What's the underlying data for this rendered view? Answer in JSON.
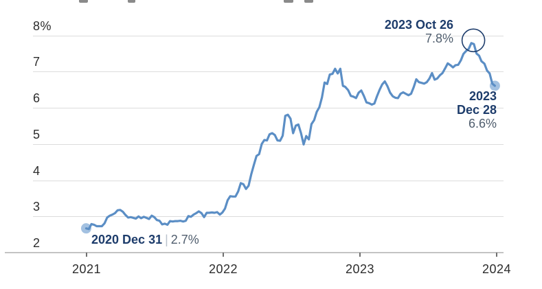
{
  "colors": {
    "line": "#5b8ec5",
    "endpoint_dot": "#a3c1e1",
    "accent_navy": "#1d3c6b",
    "value_gray": "#4f5d6d",
    "grid": "#dcdcdc",
    "axis": "#c3c3c3",
    "tick": "#6f6f6f",
    "axis_label": "#2d2d2d"
  },
  "decor": {
    "clipped_title_fragments": [
      {
        "x": 115,
        "w": 13
      },
      {
        "x": 186,
        "w": 11
      },
      {
        "x": 413,
        "w": 14
      },
      {
        "x": 443,
        "w": 13
      }
    ]
  },
  "chart_data": {
    "type": "line",
    "title": "",
    "xlabel": "",
    "ylabel": "",
    "ylim": [
      2,
      8
    ],
    "grid": "horizontal",
    "legend": "none",
    "yticks": [
      {
        "v": 8,
        "label": "8%"
      },
      {
        "v": 7,
        "label": "7"
      },
      {
        "v": 6,
        "label": "6"
      },
      {
        "v": 5,
        "label": "5"
      },
      {
        "v": 4,
        "label": "4"
      },
      {
        "v": 3,
        "label": "3"
      },
      {
        "v": 2,
        "label": "2"
      }
    ],
    "xticks": [
      {
        "year": 2021,
        "label": "2021"
      },
      {
        "year": 2022,
        "label": "2022"
      },
      {
        "year": 2023,
        "label": "2023"
      },
      {
        "year": 2024,
        "label": "2024"
      }
    ],
    "annotations": {
      "start": {
        "label": "2020 Dec 31",
        "separator": "|",
        "value": "2.7%"
      },
      "peak": {
        "label": "2023 Oct 26",
        "value": "7.8%",
        "circled": true
      },
      "end": {
        "label_line1": "2023",
        "label_line2": "Dec 28",
        "value": "6.6%"
      }
    },
    "series": [
      {
        "points": [
          [
            "2020-12-31",
            2.67
          ],
          [
            "2021-01-07",
            2.65
          ],
          [
            "2021-01-14",
            2.79
          ],
          [
            "2021-01-21",
            2.77
          ],
          [
            "2021-01-28",
            2.73
          ],
          [
            "2021-02-04",
            2.73
          ],
          [
            "2021-02-11",
            2.73
          ],
          [
            "2021-02-18",
            2.81
          ],
          [
            "2021-02-25",
            2.97
          ],
          [
            "2021-03-04",
            3.02
          ],
          [
            "2021-03-11",
            3.05
          ],
          [
            "2021-03-18",
            3.09
          ],
          [
            "2021-03-25",
            3.17
          ],
          [
            "2021-04-01",
            3.18
          ],
          [
            "2021-04-08",
            3.13
          ],
          [
            "2021-04-15",
            3.04
          ],
          [
            "2021-04-22",
            2.97
          ],
          [
            "2021-04-29",
            2.98
          ],
          [
            "2021-05-06",
            2.96
          ],
          [
            "2021-05-13",
            2.94
          ],
          [
            "2021-05-20",
            3.0
          ],
          [
            "2021-05-27",
            2.95
          ],
          [
            "2021-06-03",
            2.99
          ],
          [
            "2021-06-10",
            2.96
          ],
          [
            "2021-06-17",
            2.93
          ],
          [
            "2021-06-24",
            3.02
          ],
          [
            "2021-07-01",
            2.98
          ],
          [
            "2021-07-08",
            2.9
          ],
          [
            "2021-07-15",
            2.88
          ],
          [
            "2021-07-22",
            2.78
          ],
          [
            "2021-07-29",
            2.8
          ],
          [
            "2021-08-05",
            2.77
          ],
          [
            "2021-08-12",
            2.87
          ],
          [
            "2021-08-19",
            2.86
          ],
          [
            "2021-08-26",
            2.87
          ],
          [
            "2021-09-02",
            2.87
          ],
          [
            "2021-09-09",
            2.88
          ],
          [
            "2021-09-16",
            2.86
          ],
          [
            "2021-09-23",
            2.88
          ],
          [
            "2021-09-30",
            3.01
          ],
          [
            "2021-10-07",
            2.99
          ],
          [
            "2021-10-14",
            3.05
          ],
          [
            "2021-10-21",
            3.09
          ],
          [
            "2021-10-28",
            3.14
          ],
          [
            "2021-11-04",
            3.09
          ],
          [
            "2021-11-11",
            2.98
          ],
          [
            "2021-11-18",
            3.1
          ],
          [
            "2021-11-24",
            3.1
          ],
          [
            "2021-12-02",
            3.11
          ],
          [
            "2021-12-09",
            3.1
          ],
          [
            "2021-12-16",
            3.12
          ],
          [
            "2021-12-23",
            3.05
          ],
          [
            "2021-12-30",
            3.11
          ],
          [
            "2022-01-06",
            3.22
          ],
          [
            "2022-01-13",
            3.45
          ],
          [
            "2022-01-20",
            3.56
          ],
          [
            "2022-01-27",
            3.55
          ],
          [
            "2022-02-03",
            3.55
          ],
          [
            "2022-02-10",
            3.69
          ],
          [
            "2022-02-17",
            3.92
          ],
          [
            "2022-02-24",
            3.89
          ],
          [
            "2022-03-03",
            3.76
          ],
          [
            "2022-03-10",
            3.85
          ],
          [
            "2022-03-17",
            4.16
          ],
          [
            "2022-03-24",
            4.42
          ],
          [
            "2022-03-31",
            4.67
          ],
          [
            "2022-04-07",
            4.72
          ],
          [
            "2022-04-14",
            5.0
          ],
          [
            "2022-04-21",
            5.11
          ],
          [
            "2022-04-28",
            5.1
          ],
          [
            "2022-05-05",
            5.27
          ],
          [
            "2022-05-12",
            5.3
          ],
          [
            "2022-05-19",
            5.25
          ],
          [
            "2022-05-26",
            5.1
          ],
          [
            "2022-06-02",
            5.09
          ],
          [
            "2022-06-09",
            5.23
          ],
          [
            "2022-06-16",
            5.78
          ],
          [
            "2022-06-23",
            5.81
          ],
          [
            "2022-06-30",
            5.7
          ],
          [
            "2022-07-07",
            5.3
          ],
          [
            "2022-07-14",
            5.51
          ],
          [
            "2022-07-21",
            5.54
          ],
          [
            "2022-07-28",
            5.3
          ],
          [
            "2022-08-04",
            4.99
          ],
          [
            "2022-08-11",
            5.22
          ],
          [
            "2022-08-18",
            5.13
          ],
          [
            "2022-08-25",
            5.55
          ],
          [
            "2022-09-01",
            5.66
          ],
          [
            "2022-09-08",
            5.89
          ],
          [
            "2022-09-15",
            6.02
          ],
          [
            "2022-09-22",
            6.29
          ],
          [
            "2022-09-29",
            6.7
          ],
          [
            "2022-10-06",
            6.66
          ],
          [
            "2022-10-13",
            6.92
          ],
          [
            "2022-10-20",
            6.94
          ],
          [
            "2022-10-27",
            7.08
          ],
          [
            "2022-11-03",
            6.95
          ],
          [
            "2022-11-10",
            7.08
          ],
          [
            "2022-11-17",
            6.61
          ],
          [
            "2022-11-23",
            6.58
          ],
          [
            "2022-12-01",
            6.49
          ],
          [
            "2022-12-08",
            6.33
          ],
          [
            "2022-12-15",
            6.31
          ],
          [
            "2022-12-22",
            6.27
          ],
          [
            "2022-12-29",
            6.42
          ],
          [
            "2023-01-05",
            6.48
          ],
          [
            "2023-01-12",
            6.33
          ],
          [
            "2023-01-19",
            6.15
          ],
          [
            "2023-01-26",
            6.13
          ],
          [
            "2023-02-02",
            6.09
          ],
          [
            "2023-02-09",
            6.12
          ],
          [
            "2023-02-16",
            6.32
          ],
          [
            "2023-02-23",
            6.5
          ],
          [
            "2023-03-02",
            6.65
          ],
          [
            "2023-03-09",
            6.73
          ],
          [
            "2023-03-16",
            6.6
          ],
          [
            "2023-03-23",
            6.42
          ],
          [
            "2023-03-30",
            6.32
          ],
          [
            "2023-04-06",
            6.28
          ],
          [
            "2023-04-13",
            6.27
          ],
          [
            "2023-04-20",
            6.39
          ],
          [
            "2023-04-27",
            6.43
          ],
          [
            "2023-05-04",
            6.39
          ],
          [
            "2023-05-11",
            6.35
          ],
          [
            "2023-05-18",
            6.39
          ],
          [
            "2023-05-25",
            6.57
          ],
          [
            "2023-06-01",
            6.79
          ],
          [
            "2023-06-08",
            6.71
          ],
          [
            "2023-06-15",
            6.69
          ],
          [
            "2023-06-22",
            6.67
          ],
          [
            "2023-06-29",
            6.71
          ],
          [
            "2023-07-06",
            6.81
          ],
          [
            "2023-07-13",
            6.96
          ],
          [
            "2023-07-20",
            6.78
          ],
          [
            "2023-07-27",
            6.81
          ],
          [
            "2023-08-03",
            6.9
          ],
          [
            "2023-08-10",
            6.96
          ],
          [
            "2023-08-17",
            7.09
          ],
          [
            "2023-08-24",
            7.23
          ],
          [
            "2023-08-31",
            7.18
          ],
          [
            "2023-09-07",
            7.12
          ],
          [
            "2023-09-14",
            7.18
          ],
          [
            "2023-09-21",
            7.19
          ],
          [
            "2023-09-28",
            7.31
          ],
          [
            "2023-10-05",
            7.49
          ],
          [
            "2023-10-12",
            7.57
          ],
          [
            "2023-10-19",
            7.63
          ],
          [
            "2023-10-26",
            7.79
          ],
          [
            "2023-11-02",
            7.76
          ],
          [
            "2023-11-09",
            7.5
          ],
          [
            "2023-11-16",
            7.44
          ],
          [
            "2023-11-22",
            7.29
          ],
          [
            "2023-11-30",
            7.22
          ],
          [
            "2023-12-07",
            7.03
          ],
          [
            "2023-12-14",
            6.95
          ],
          [
            "2023-12-21",
            6.67
          ],
          [
            "2023-12-28",
            6.61
          ]
        ]
      }
    ]
  }
}
